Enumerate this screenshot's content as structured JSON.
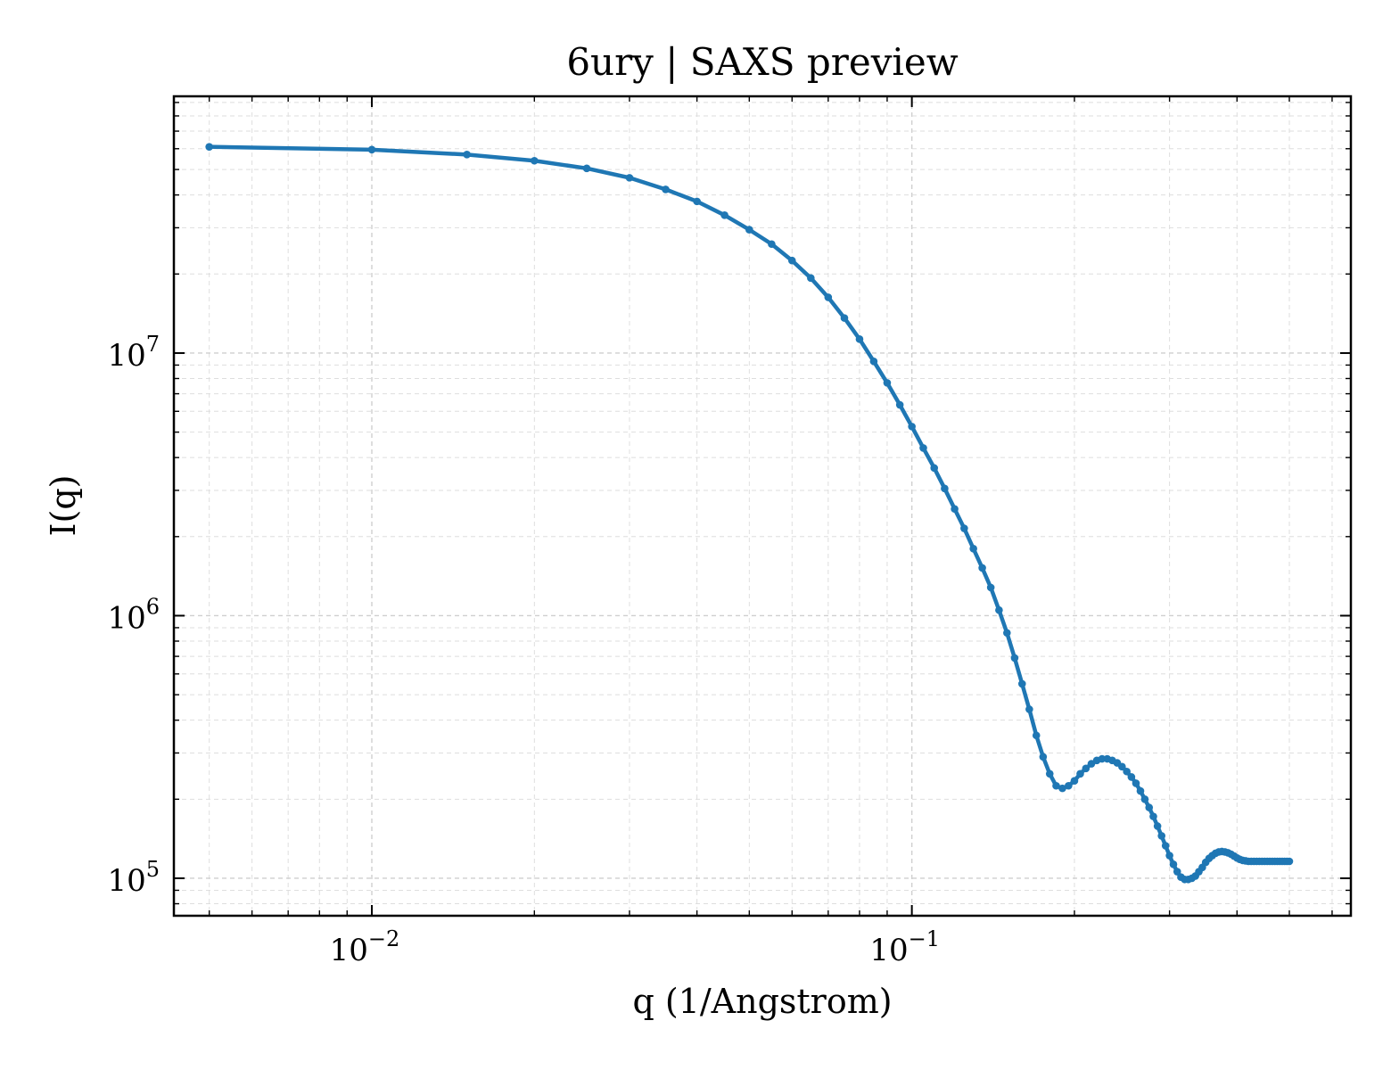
{
  "chart_data": {
    "type": "line",
    "title": "6ury | SAXS preview",
    "xlabel": "q (1/Angstrom)",
    "ylabel": "I(q)",
    "xscale": "log",
    "yscale": "log",
    "xlim": [
      0.0043,
      0.65
    ],
    "ylim": [
      72000,
      95000000
    ],
    "xticks": [
      {
        "value": 0.01,
        "base": "10",
        "exp": "−2"
      },
      {
        "value": 0.1,
        "base": "10",
        "exp": "−1"
      }
    ],
    "yticks": [
      {
        "value": 100000,
        "base": "10",
        "exp": "5"
      },
      {
        "value": 1000000,
        "base": "10",
        "exp": "6"
      },
      {
        "value": 10000000,
        "base": "10",
        "exp": "7"
      }
    ],
    "grid": true,
    "line_color": "#1f77b4",
    "series": [
      {
        "name": "",
        "x": [
          0.005,
          0.01,
          0.015,
          0.02,
          0.025,
          0.03,
          0.035,
          0.04,
          0.045,
          0.05,
          0.055,
          0.06,
          0.065,
          0.07,
          0.075,
          0.08,
          0.085,
          0.09,
          0.095,
          0.1,
          0.105,
          0.11,
          0.115,
          0.12,
          0.125,
          0.13,
          0.135,
          0.14,
          0.145,
          0.15,
          0.155,
          0.16,
          0.165,
          0.17,
          0.175,
          0.18,
          0.185,
          0.19,
          0.195,
          0.2,
          0.205,
          0.21,
          0.215,
          0.22,
          0.225,
          0.23,
          0.235,
          0.24,
          0.245,
          0.25,
          0.255,
          0.26,
          0.265,
          0.27,
          0.275,
          0.28,
          0.285,
          0.29,
          0.295,
          0.3,
          0.305,
          0.31,
          0.315,
          0.32,
          0.325,
          0.33,
          0.335,
          0.34,
          0.345,
          0.35,
          0.355,
          0.36,
          0.365,
          0.37,
          0.375,
          0.38,
          0.385,
          0.39,
          0.395,
          0.4,
          0.405,
          0.41,
          0.415,
          0.42,
          0.425,
          0.43,
          0.435,
          0.44,
          0.445,
          0.45,
          0.455,
          0.46,
          0.465,
          0.47,
          0.475,
          0.48,
          0.485,
          0.49,
          0.495,
          0.5
        ],
        "y": [
          61000000,
          59500000,
          57000000,
          54000000,
          50500000,
          46500000,
          42000000,
          37800000,
          33500000,
          29500000,
          26000000,
          22500000,
          19300000,
          16300000,
          13600000,
          11300000,
          9300000,
          7700000,
          6350000,
          5250000,
          4350000,
          3650000,
          3050000,
          2550000,
          2150000,
          1800000,
          1520000,
          1280000,
          1050000,
          860000,
          690000,
          550000,
          440000,
          350000,
          290000,
          250000,
          225000,
          220000,
          225000,
          235000,
          250000,
          262000,
          273000,
          281000,
          285000,
          285000,
          281000,
          275000,
          266000,
          255000,
          243000,
          230000,
          215000,
          200000,
          186000,
          172000,
          158000,
          145000,
          133000,
          122000,
          113000,
          106000,
          101000,
          99000,
          99000,
          100000,
          102000,
          106000,
          110000,
          115000,
          119000,
          122000,
          124500,
          126000,
          126500,
          126000,
          125000,
          123500,
          121500,
          119500,
          118000,
          117000,
          116500,
          116000,
          116000,
          116000,
          116000,
          116000,
          116000,
          116000,
          116000,
          116000,
          116000,
          116000,
          116000,
          116000,
          116000,
          116000,
          116000,
          116000
        ]
      }
    ]
  }
}
